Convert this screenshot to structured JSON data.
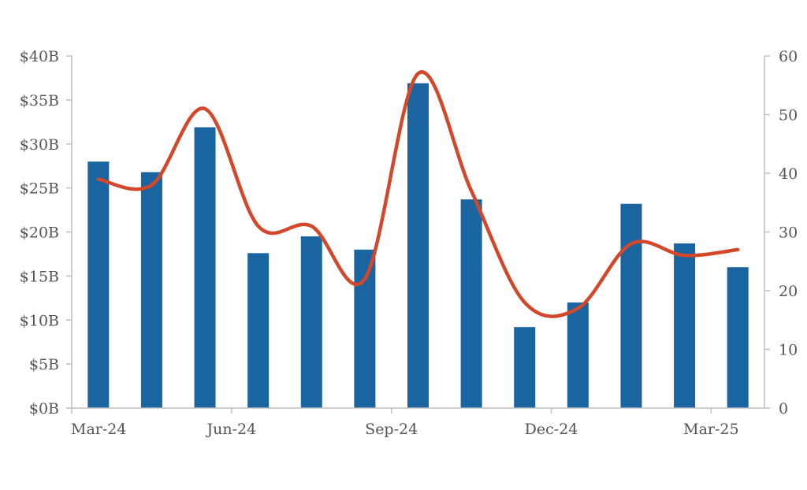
{
  "chart_data": {
    "type": "bar",
    "title": "",
    "xlabel": "",
    "ylabel": "",
    "x_tick_labels": [
      "Mar-24",
      "Jun-24",
      "Sep-24",
      "Dec-24",
      "Mar-25"
    ],
    "categories": [
      "Mar-24",
      "Apr-24",
      "May-24",
      "Jun-24",
      "Jul-24",
      "Aug-24",
      "Sep-24",
      "Oct-24",
      "Nov-24",
      "Dec-24",
      "Jan-25",
      "Feb-25",
      "Mar-25"
    ],
    "ylim": [
      0,
      40
    ],
    "y2lim": [
      0,
      60
    ],
    "y_tick_labels": [
      "$0B",
      "$5B",
      "$10B",
      "$15B",
      "$20B",
      "$25B",
      "$30B",
      "$35B",
      "$40B"
    ],
    "y2_tick_labels": [
      "0",
      "10",
      "20",
      "30",
      "40",
      "50",
      "60"
    ],
    "grid": false,
    "series": [
      {
        "type": "bar",
        "axis": "left",
        "color": "#1a64a0",
        "values": [
          28.0,
          26.8,
          31.9,
          17.6,
          19.5,
          18.0,
          36.9,
          23.7,
          9.2,
          12.0,
          23.2,
          18.7,
          16.0
        ]
      },
      {
        "type": "line",
        "axis": "right",
        "smooth": true,
        "color": "#d3472a",
        "values": [
          39,
          38,
          51,
          31,
          31,
          22,
          57,
          37,
          18,
          17,
          28,
          26,
          27
        ]
      }
    ]
  }
}
